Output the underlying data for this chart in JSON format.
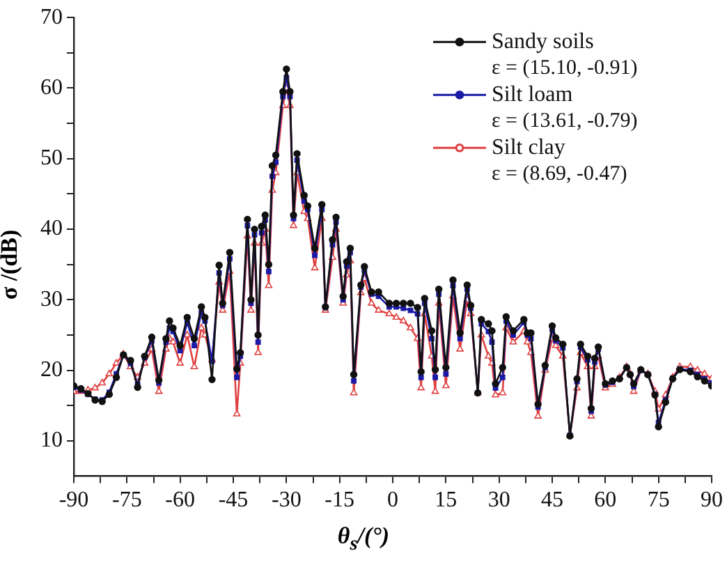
{
  "chart_data": {
    "type": "line",
    "xlabel": "θ$_{s}$/(°)",
    "ylabel": "σ /(dB)",
    "x": [
      -90,
      -88,
      -86,
      -84,
      -82,
      -80,
      -78,
      -76,
      -74,
      -72,
      -70,
      -68,
      -66,
      -64,
      -63,
      -62,
      -60,
      -58,
      -56,
      -54,
      -53,
      -51,
      -49,
      -48,
      -46,
      -44,
      -43,
      -41,
      -40,
      -39,
      -38,
      -37,
      -36,
      -35,
      -34,
      -33,
      -31,
      -30,
      -29,
      -28,
      -27,
      -25,
      -24,
      -22,
      -20,
      -19,
      -17,
      -16,
      -14,
      -13,
      -12,
      -11,
      -9,
      -8,
      -6,
      -4,
      -1,
      1,
      3,
      5,
      7,
      8,
      9,
      11,
      12,
      13,
      15,
      17,
      19,
      21,
      22,
      24,
      25,
      27,
      28,
      29,
      31,
      32,
      34,
      37,
      38,
      39,
      41,
      43,
      45,
      46,
      48,
      50,
      52,
      53,
      55,
      56,
      57,
      58,
      60,
      62,
      64,
      66,
      67,
      68,
      70,
      72,
      74,
      75,
      77,
      79,
      81,
      84,
      86,
      88,
      90
    ],
    "series": [
      {
        "name": "Sandy soils",
        "color": "#111111",
        "marker": "circle",
        "values": [
          17.8,
          17.4,
          16.7,
          15.8,
          15.6,
          16.6,
          19,
          22.2,
          21.4,
          17.6,
          22,
          24.7,
          18.6,
          24.5,
          27,
          26,
          23.5,
          27.5,
          24.5,
          29,
          27.5,
          18.7,
          34.9,
          29.5,
          36.7,
          20.2,
          22.5,
          41.4,
          30,
          40,
          25,
          40.4,
          42,
          35,
          49,
          50.5,
          59.5,
          62.7,
          59.5,
          42,
          50.7,
          44.8,
          43.3,
          37.3,
          43.5,
          29,
          38.5,
          41.7,
          30.5,
          35.4,
          37.3,
          19.4,
          32.1,
          34.7,
          31.1,
          31.1,
          29.5,
          29.5,
          29.5,
          29.5,
          28.9,
          19.8,
          30.2,
          25.6,
          20.1,
          31.5,
          20.4,
          32.8,
          25.3,
          32.1,
          29.2,
          16.8,
          27.2,
          26.6,
          25.6,
          18.1,
          20.4,
          27.6,
          25.6,
          27.2,
          25.3,
          25.3,
          15.2,
          20.7,
          26.3,
          24.6,
          23.7,
          10.7,
          18.8,
          23.7,
          22,
          14.6,
          21.7,
          23.3,
          18.1,
          18.5,
          18.8,
          20.4,
          19.4,
          18.1,
          20.1,
          19.4,
          16.5,
          12,
          15.5,
          18.8,
          20.1,
          19.8,
          19.1,
          18.5,
          17.8
        ]
      },
      {
        "name": "Silt loam",
        "color": "#1a1aa6",
        "marker": "square",
        "values": [
          17.6,
          17.2,
          16.6,
          15.9,
          15.8,
          16.9,
          19.5,
          22.2,
          21,
          18,
          21.8,
          24.2,
          18.2,
          24,
          26,
          25.5,
          22.8,
          26.8,
          23.5,
          28.2,
          27,
          21.3,
          33.8,
          29.2,
          35.8,
          19,
          22,
          40.5,
          29.5,
          39.2,
          24,
          39.5,
          41.3,
          34,
          47.5,
          49.5,
          58.8,
          61.5,
          58.8,
          41.5,
          49.8,
          44,
          42.8,
          36.3,
          42.8,
          28.9,
          37.8,
          41,
          30,
          34.8,
          36.7,
          18.5,
          31.8,
          34.2,
          30.8,
          30.5,
          29,
          29,
          28.8,
          28.5,
          28,
          19,
          29.5,
          24.5,
          19,
          30.8,
          19.5,
          32,
          24.5,
          31.5,
          28.8,
          16.8,
          26.6,
          25.5,
          24,
          17.5,
          19,
          27,
          25,
          26.8,
          25,
          24.5,
          14.8,
          20.4,
          25.8,
          24.2,
          23.2,
          10.8,
          18.4,
          23.3,
          21.5,
          14.2,
          21.2,
          23,
          17.9,
          18.3,
          18.9,
          20.4,
          19.4,
          17.7,
          20,
          19.4,
          16.6,
          12.6,
          15.8,
          18.9,
          20.2,
          20,
          19.4,
          18.8,
          18.2
        ]
      },
      {
        "name": "Silt clay",
        "color": "#e04040",
        "marker": "triangle",
        "values": [
          17,
          17,
          17.2,
          17.5,
          18.2,
          19.5,
          21,
          22.3,
          20.5,
          19,
          21,
          23,
          17,
          23,
          24.5,
          24,
          21,
          25,
          20.5,
          26,
          25,
          21.5,
          32.5,
          28.5,
          34,
          13.8,
          21,
          39,
          28.5,
          38,
          22.5,
          38,
          40,
          32,
          45.5,
          48,
          57.5,
          60,
          57.5,
          40.5,
          48,
          42.5,
          41.5,
          34.5,
          41.5,
          28.5,
          36,
          40,
          29.5,
          33.5,
          35.5,
          16.8,
          31,
          33,
          29.5,
          28.5,
          28,
          27.5,
          27,
          26,
          24.5,
          17.5,
          28,
          22,
          17,
          29.5,
          17.8,
          30.5,
          23,
          30,
          28,
          16.8,
          25,
          22,
          21,
          16.5,
          16.8,
          26,
          24,
          25.5,
          24,
          22.5,
          13.5,
          20,
          24.5,
          23.5,
          22,
          10.8,
          17.5,
          22.5,
          20.5,
          13.5,
          20.5,
          22,
          17.5,
          18,
          19,
          20.5,
          19.5,
          17,
          20,
          19.5,
          17,
          14.5,
          16.5,
          19,
          20.5,
          20.5,
          20,
          19.5,
          18.8
        ]
      }
    ],
    "annotations": [
      "ε = (15.10, -0.91)",
      "ε = (13.61, -0.79)",
      "ε = (8.69, -0.47)"
    ],
    "xlim": [
      -90,
      90
    ],
    "xticks": [
      -90,
      {
        "value": -82.5,
        "label": null
      },
      -75,
      {
        "value": -67.5,
        "label": null
      },
      -60,
      {
        "value": -52.5,
        "label": null
      },
      -45,
      {
        "value": -37.5,
        "label": null
      },
      -30,
      {
        "value": -22.5,
        "label": null
      },
      -15,
      {
        "value": -7.5,
        "label": null
      },
      0,
      {
        "value": 7.5,
        "label": null
      },
      15,
      {
        "value": 22.5,
        "label": null
      },
      30,
      {
        "value": 37.5,
        "label": null
      },
      45,
      {
        "value": 52.5,
        "label": null
      },
      60,
      {
        "value": 67.5,
        "label": null
      },
      75,
      {
        "value": 82.5,
        "label": null
      },
      90
    ],
    "ylim": [
      5,
      70
    ],
    "yticks": [
      10,
      {
        "value": 15,
        "label": null
      },
      20,
      {
        "value": 25,
        "label": null
      },
      30,
      {
        "value": 35,
        "label": null
      },
      40,
      {
        "value": 45,
        "label": null
      },
      50,
      {
        "value": 55,
        "label": null
      },
      60,
      {
        "value": 65,
        "label": null
      },
      70
    ],
    "grid": false,
    "legend": "top right"
  }
}
